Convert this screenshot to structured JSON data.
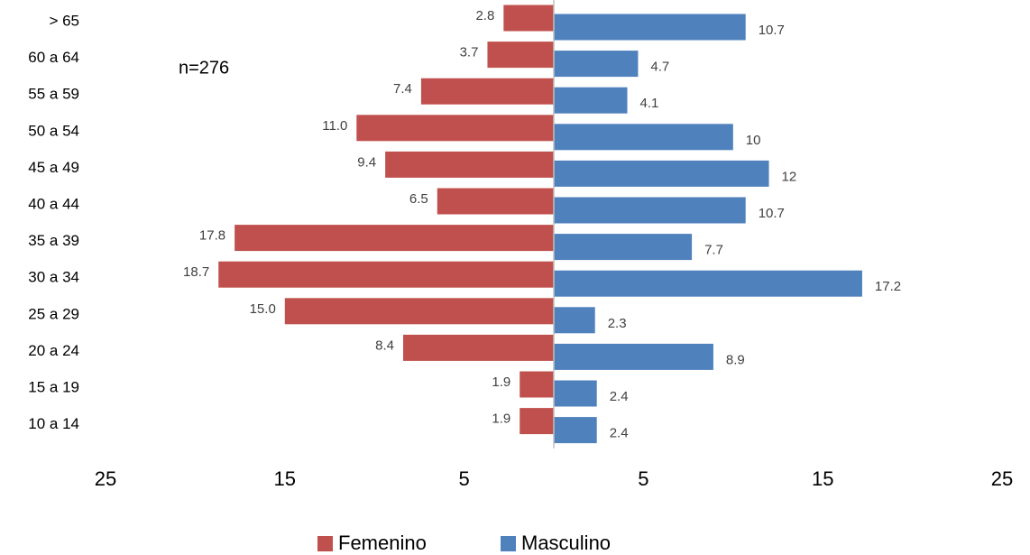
{
  "chart_data": {
    "type": "pyramid",
    "annotation": "n=276",
    "categories": [
      "> 65",
      "60 a 64",
      "55 a 59",
      "50 a 54",
      "45 a 49",
      "40 a 44",
      "35 a 39",
      "30 a 34",
      "25 a 29",
      "20 a 24",
      "15 a 19",
      "10 a 14"
    ],
    "series": [
      {
        "name": "Femenino",
        "color": "#c0504d",
        "values": [
          2.8,
          3.7,
          7.4,
          11.0,
          9.4,
          6.5,
          17.8,
          18.7,
          15.0,
          8.4,
          1.9,
          1.9
        ],
        "value_labels": [
          "2.8",
          "3.7",
          "7.4",
          "11.0",
          "9.4",
          "6.5",
          "17.8",
          "18.7",
          "15.0",
          "8.4",
          "1.9",
          "1.9"
        ]
      },
      {
        "name": "Masculino",
        "color": "#4f81bd",
        "values": [
          10.7,
          4.7,
          4.1,
          10,
          12,
          10.7,
          7.7,
          17.2,
          2.3,
          8.9,
          2.4,
          2.4
        ]
      }
    ],
    "xlim": [
      -25,
      25
    ],
    "xticks": [
      {
        "value": -25,
        "label": "25"
      },
      {
        "value": -15,
        "label": "15"
      },
      {
        "value": -5,
        "label": "5"
      },
      5,
      15,
      25
    ],
    "legend": "bottom"
  }
}
